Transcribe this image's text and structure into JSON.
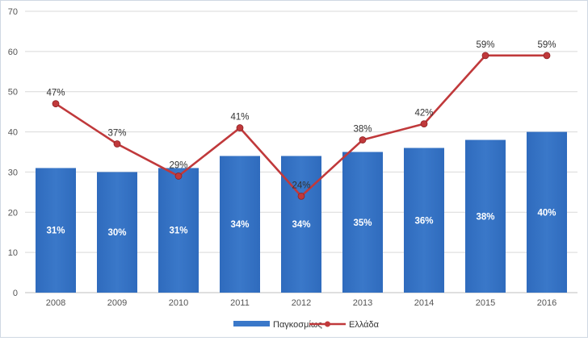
{
  "chart_data": {
    "type": "bar",
    "categories": [
      "2008",
      "2009",
      "2010",
      "2011",
      "2012",
      "2013",
      "2014",
      "2015",
      "2016"
    ],
    "series": [
      {
        "name": "Παγκοσμίως",
        "type": "bar",
        "values": [
          31,
          30,
          31,
          34,
          34,
          35,
          36,
          38,
          40
        ],
        "labels": [
          "31%",
          "30%",
          "31%",
          "34%",
          "34%",
          "35%",
          "36%",
          "38%",
          "40%"
        ],
        "color": "#3a78c9"
      },
      {
        "name": "Ελλάδα",
        "type": "line",
        "values": [
          47,
          37,
          29,
          41,
          24,
          38,
          42,
          59,
          59
        ],
        "labels": [
          "47%",
          "37%",
          "29%",
          "41%",
          "24%",
          "38%",
          "42%",
          "59%",
          "59%"
        ],
        "color": "#c0393b"
      }
    ],
    "yticks": [
      "0",
      "10",
      "20",
      "30",
      "40",
      "50",
      "60",
      "70"
    ],
    "ylim": [
      0,
      70
    ],
    "grid": true,
    "legend_position": "bottom"
  }
}
